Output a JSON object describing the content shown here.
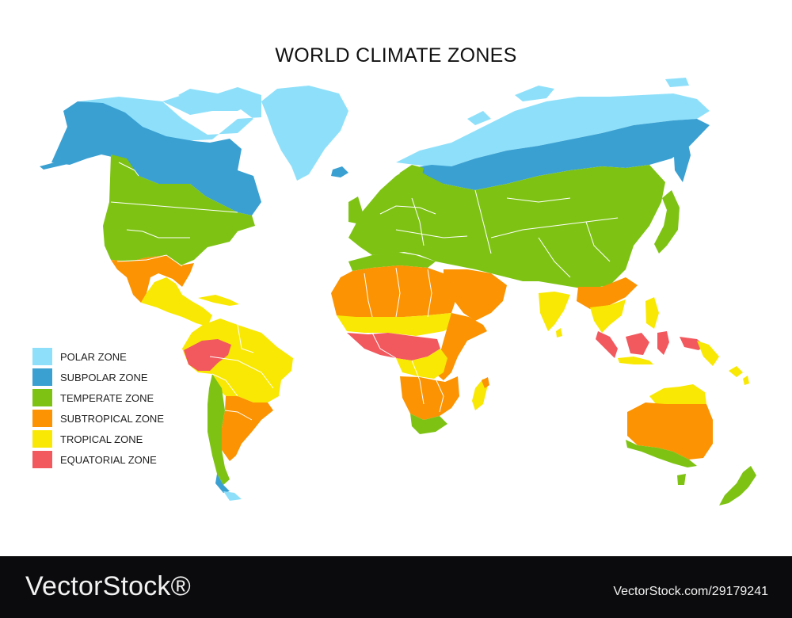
{
  "title": "WORLD CLIMATE ZONES",
  "colors": {
    "polar": "#8ee0fa",
    "subpolar": "#3aa0d2",
    "temperate": "#7ec314",
    "subtropical": "#fb9302",
    "tropical": "#f8e804",
    "equatorial": "#f1595e",
    "border": "#ffffff"
  },
  "legend": [
    {
      "label": "POLAR ZONE",
      "color": "#8ee0fa"
    },
    {
      "label": "SUBPOLAR ZONE",
      "color": "#3aa0d2"
    },
    {
      "label": "TEMPERATE ZONE",
      "color": "#7ec314"
    },
    {
      "label": "SUBTROPICAL ZONE",
      "color": "#fb9302"
    },
    {
      "label": "TROPICAL ZONE",
      "color": "#f8e804"
    },
    {
      "label": "EQUATORIAL ZONE",
      "color": "#f1595e"
    }
  ],
  "footer": {
    "brand": "VectorStock®",
    "id": "VectorStock.com/29179241"
  }
}
